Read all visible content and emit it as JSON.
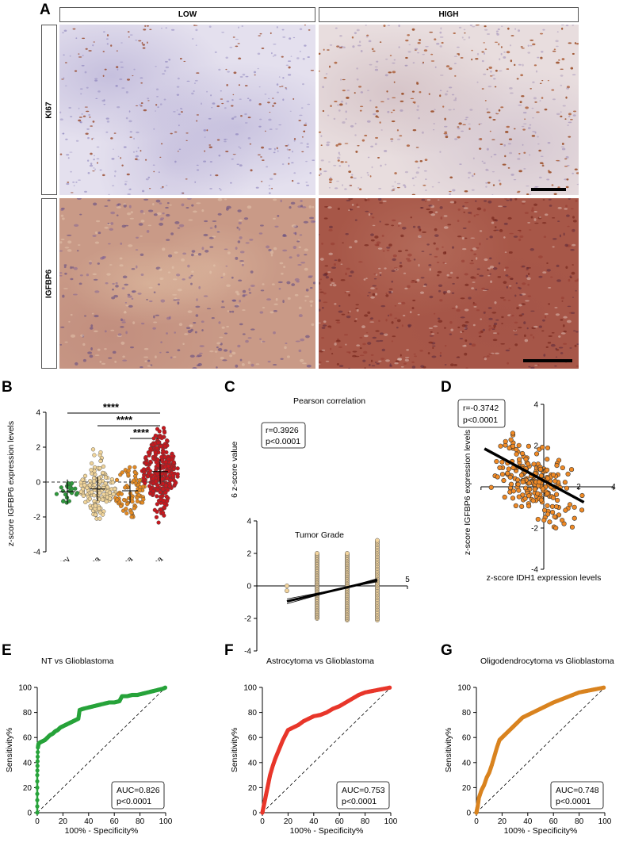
{
  "panel_a": {
    "label": "A",
    "columns": [
      "LOW",
      "HIGH"
    ],
    "rows": [
      "KI67",
      "IGFBP6"
    ]
  },
  "panel_b": {
    "label": "B"
  },
  "panel_c": {
    "label": "C"
  },
  "panel_d": {
    "label": "D"
  },
  "panel_e": {
    "label": "E"
  },
  "panel_f": {
    "label": "F"
  },
  "panel_g": {
    "label": "G"
  },
  "chart_data": [
    {
      "panel": "B",
      "type": "scatter",
      "ylabel": "z-score IGFBP6 expression levels",
      "categories": [
        "Healthy",
        "Astrocytoma",
        "Oligodendrocytoma",
        "Glioblastoma"
      ],
      "ylim": [
        -4,
        4
      ],
      "yticks": [
        -4,
        -2,
        0,
        2,
        4
      ],
      "colors": [
        "#2e9a3c",
        "#f0d49a",
        "#e48a22",
        "#c8171d"
      ],
      "n_points": [
        25,
        150,
        80,
        300
      ],
      "ranges": [
        [
          -1.3,
          0.3
        ],
        [
          -2.1,
          1.9
        ],
        [
          -2.0,
          1.9
        ],
        [
          -2.5,
          3.1
        ]
      ],
      "means": [
        -0.55,
        -0.4,
        -0.5,
        0.6
      ],
      "significance": [
        {
          "from": "Healthy",
          "to": "Glioblastoma",
          "label": "****"
        },
        {
          "from": "Astrocytoma",
          "to": "Glioblastoma",
          "label": "****"
        },
        {
          "from": "Oligodendrocytoma",
          "to": "Glioblastoma",
          "label": "****"
        }
      ]
    },
    {
      "panel": "C",
      "type": "scatter",
      "title": "Pearson correlation",
      "xlabel": "Tumor Grade",
      "ylabel": "IGFBP6 z-score value",
      "xlim": [
        0,
        5
      ],
      "ylim": [
        -4,
        4
      ],
      "yticks": [
        -4,
        -2,
        0,
        2,
        4
      ],
      "xtick_label": "5",
      "annotation": [
        "r=0.3926",
        "p<0.0001"
      ],
      "grade_columns": [
        1,
        2,
        3,
        4
      ],
      "grade_ranges": [
        [
          -0.3,
          0
        ],
        [
          -2.0,
          2.0
        ],
        [
          -2.1,
          2.0
        ],
        [
          -2.1,
          2.8
        ]
      ],
      "regression": {
        "x": [
          1,
          4
        ],
        "y": [
          -0.95,
          0.35
        ]
      },
      "color": "#f3d49c"
    },
    {
      "panel": "D",
      "type": "scatter",
      "xlabel": "z-score IDH1 expression levels",
      "ylabel": "z-score IGFBP6 expression levels",
      "xlim": [
        -4,
        4
      ],
      "ylim": [
        -4,
        4
      ],
      "xticks_labels": [
        "-2",
        "2",
        "4"
      ],
      "yticks_labels": [
        "4",
        "2",
        "-2",
        "-4"
      ],
      "annotation": [
        "r=-0.3742",
        "p<0.0001"
      ],
      "regression": {
        "x": [
          -3.4,
          2.3
        ],
        "y": [
          1.85,
          -0.75
        ]
      },
      "n_points": 220,
      "color": "#f08a25"
    },
    {
      "panel": "E",
      "type": "line",
      "title": "NT vs Glioblastoma",
      "xlabel": "100% - Specificity%",
      "ylabel": "Sensitivity%",
      "xlim": [
        0,
        100
      ],
      "ylim": [
        0,
        100
      ],
      "ticks": [
        0,
        20,
        40,
        60,
        80,
        100
      ],
      "color": "#27a33a",
      "annotation": [
        "AUC=0.826",
        "p<0.0001"
      ],
      "x": [
        0,
        0,
        0.5,
        1,
        2,
        4,
        6,
        8,
        10,
        12,
        14,
        16,
        18,
        20,
        22,
        24,
        26,
        28,
        30,
        32,
        33,
        36,
        40,
        44,
        48,
        52,
        56,
        60,
        64,
        66,
        70,
        74,
        78,
        82,
        86,
        90,
        94,
        98,
        100
      ],
      "y": [
        0,
        30,
        52,
        55,
        56,
        57,
        58,
        60,
        62,
        63,
        65,
        66,
        68,
        69,
        70,
        71,
        72,
        73,
        74,
        75,
        82,
        83,
        84,
        85,
        86,
        87,
        88,
        88,
        89,
        93,
        93,
        94,
        94,
        95,
        96,
        97,
        98,
        99,
        100
      ]
    },
    {
      "panel": "F",
      "type": "line",
      "title": "Astrocytoma vs Glioblastoma",
      "xlabel": "100% - Specificity%",
      "ylabel": "Sensitivity%",
      "xlim": [
        0,
        100
      ],
      "ylim": [
        0,
        100
      ],
      "ticks": [
        0,
        20,
        40,
        60,
        80,
        100
      ],
      "color": "#e8362a",
      "annotation": [
        "AUC=0.753",
        "p<0.0001"
      ],
      "x": [
        0,
        1,
        2,
        3,
        4,
        5,
        6,
        8,
        10,
        12,
        14,
        16,
        18,
        20,
        24,
        28,
        32,
        36,
        40,
        45,
        50,
        55,
        60,
        65,
        70,
        75,
        80,
        85,
        90,
        95,
        100
      ],
      "y": [
        0,
        5,
        10,
        15,
        20,
        25,
        30,
        37,
        43,
        48,
        53,
        58,
        62,
        66,
        68,
        70,
        73,
        75,
        77,
        78,
        80,
        83,
        85,
        88,
        91,
        94,
        96,
        97,
        98,
        99,
        100
      ]
    },
    {
      "panel": "G",
      "type": "line",
      "title": "Oligodendrocytoma vs Glioblastoma",
      "xlabel": "100% - Specificity%",
      "ylabel": "Sensitivity%",
      "xlim": [
        0,
        100
      ],
      "ylim": [
        0,
        100
      ],
      "ticks": [
        0,
        20,
        40,
        60,
        80,
        100
      ],
      "color": "#d9831f",
      "annotation": [
        "AUC=0.748",
        "p<0.0001"
      ],
      "x": [
        0,
        1,
        2,
        4,
        6,
        8,
        10,
        12,
        14,
        16,
        18,
        20,
        22,
        25,
        28,
        30,
        33,
        36,
        40,
        44,
        48,
        52,
        56,
        60,
        65,
        70,
        75,
        80,
        85,
        90,
        95,
        100
      ],
      "y": [
        0,
        5,
        12,
        18,
        22,
        28,
        32,
        38,
        45,
        52,
        58,
        60,
        62,
        65,
        68,
        70,
        73,
        76,
        78,
        80,
        82,
        84,
        86,
        88,
        90,
        92,
        94,
        96,
        97,
        98,
        99,
        100
      ]
    }
  ]
}
